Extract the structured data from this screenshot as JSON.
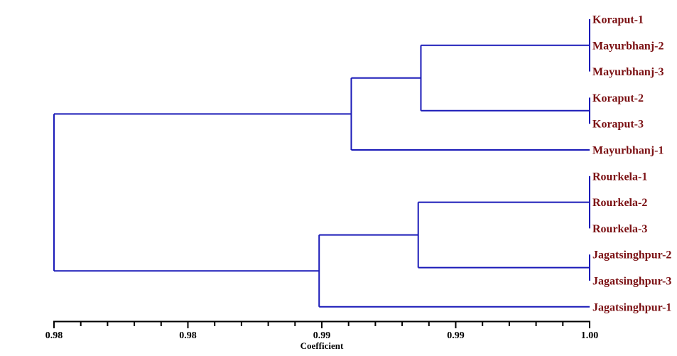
{
  "figure": {
    "title": "",
    "colors": {
      "branch": "#1a1ab8",
      "label": "#7b1013",
      "axis": "#000000",
      "background": "#ffffff"
    }
  },
  "chart_data": {
    "type": "dendrogram",
    "orientation": "horizontal-right",
    "title": "",
    "xlabel": "Coefficient",
    "ylabel": "",
    "leaves": [
      "Koraput-1",
      "Mayurbhanj-2",
      "Mayurbhanj-3",
      "Koraput-2",
      "Koraput-3",
      "Mayurbhanj-1",
      "Rourkela-1",
      "Rourkela-2",
      "Rourkela-3",
      "Jagatsinghpur-2",
      "Jagatsinghpur-3",
      "Jagatsinghpur-1"
    ],
    "axis": {
      "label": "Coefficient",
      "min": 0.98,
      "max": 1.0,
      "major_tick_values": [
        0.98,
        0.985,
        0.99,
        0.995,
        1.0
      ],
      "major_tick_labels": [
        "0.98",
        "0.98",
        "0.99",
        "0.99",
        "1.00"
      ],
      "minor_tick_step": 0.001,
      "grid": false
    },
    "tree": {
      "coefficient": 0.98,
      "children": [
        {
          "coefficient": 0.9911,
          "children": [
            {
              "coefficient": 0.9937,
              "children": [
                {
                  "coefficient": 1.0,
                  "children": [
                    {
                      "leaf": "Koraput-1"
                    },
                    {
                      "leaf": "Mayurbhanj-2"
                    },
                    {
                      "leaf": "Mayurbhanj-3"
                    }
                  ]
                },
                {
                  "coefficient": 1.0,
                  "children": [
                    {
                      "leaf": "Koraput-2"
                    },
                    {
                      "leaf": "Koraput-3"
                    }
                  ]
                }
              ]
            },
            {
              "leaf": "Mayurbhanj-1"
            }
          ]
        },
        {
          "coefficient": 0.9899,
          "children": [
            {
              "coefficient": 0.9936,
              "children": [
                {
                  "coefficient": 1.0,
                  "children": [
                    {
                      "leaf": "Rourkela-1"
                    },
                    {
                      "leaf": "Rourkela-2"
                    },
                    {
                      "leaf": "Rourkela-3"
                    }
                  ]
                },
                {
                  "coefficient": 1.0,
                  "children": [
                    {
                      "leaf": "Jagatsinghpur-2"
                    },
                    {
                      "leaf": "Jagatsinghpur-3"
                    }
                  ]
                }
              ]
            },
            {
              "leaf": "Jagatsinghpur-1"
            }
          ]
        }
      ]
    }
  }
}
